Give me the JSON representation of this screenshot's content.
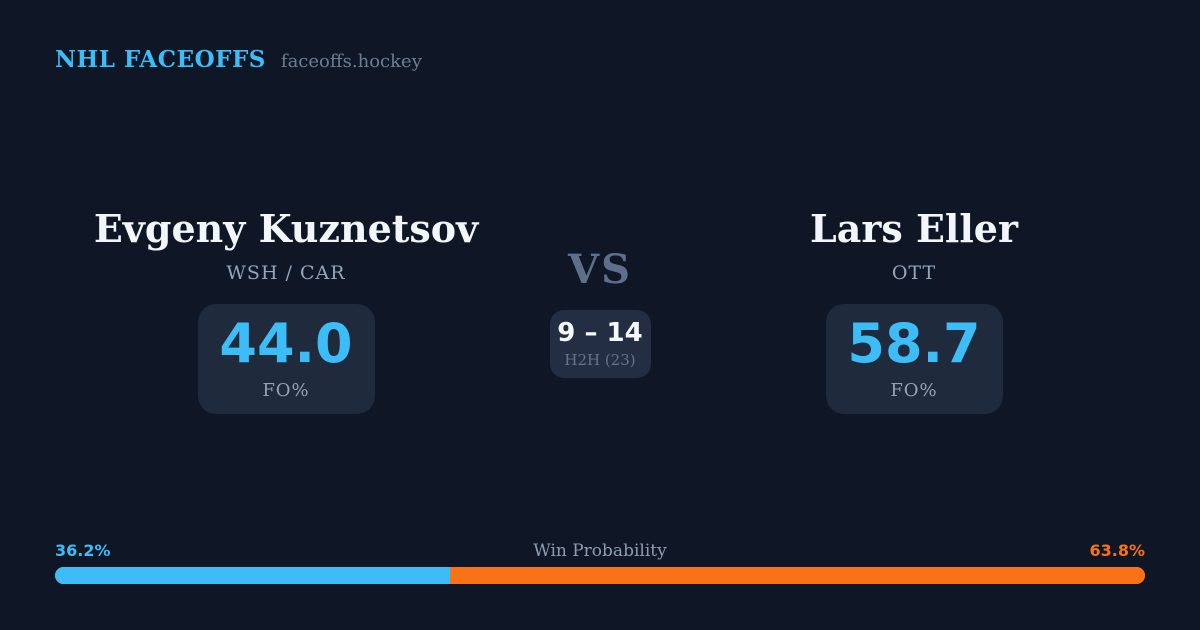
{
  "brand": {
    "title": "NHL FACEOFFS",
    "domain": "faceoffs.hockey"
  },
  "matchup": {
    "vs_label": "VS",
    "left": {
      "name": "Evgeny Kuznetsov",
      "teams": "WSH / CAR",
      "fo_pct": "44.0",
      "stat_label": "FO%"
    },
    "right": {
      "name": "Lars Eller",
      "teams": "OTT",
      "fo_pct": "58.7",
      "stat_label": "FO%"
    },
    "h2h": {
      "record": "9 – 14",
      "label": "H2H (23)"
    }
  },
  "win_probability": {
    "label": "Win Probability",
    "left_pct_text": "36.2%",
    "right_pct_text": "63.8%",
    "left_value": 36.2,
    "right_value": 63.8
  },
  "colors": {
    "background": "#0f1726",
    "panel": "#1f2a3c",
    "accent_blue": "#3dbdf8",
    "accent_orange": "#f97316"
  }
}
